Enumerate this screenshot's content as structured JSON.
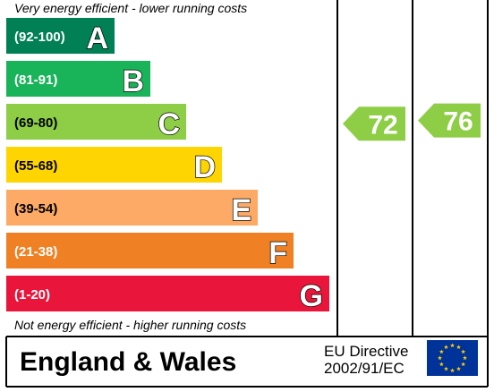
{
  "chart_data": {
    "type": "bar",
    "top_note": "Very energy efficient - lower running costs",
    "bottom_note": "Not energy efficient - higher running costs",
    "bands": [
      {
        "range": "(92-100)",
        "letter": "A",
        "color": "#008054"
      },
      {
        "range": "(81-91)",
        "letter": "B",
        "color": "#19b459"
      },
      {
        "range": "(69-80)",
        "letter": "C",
        "color": "#8dce46"
      },
      {
        "range": "(55-68)",
        "letter": "D",
        "color": "#ffd500"
      },
      {
        "range": "(39-54)",
        "letter": "E",
        "color": "#fcaa65"
      },
      {
        "range": "(21-38)",
        "letter": "F",
        "color": "#ef8023"
      },
      {
        "range": "(1-20)",
        "letter": "G",
        "color": "#e9153b"
      }
    ],
    "ratings": [
      {
        "value": 72,
        "band": "C",
        "color": "#8dce46"
      },
      {
        "value": 76,
        "band": "C",
        "color": "#8dce46"
      }
    ]
  },
  "footer": {
    "region": "England & Wales",
    "directive_line1": "EU Directive",
    "directive_line2": "2002/91/EC",
    "flag_blue": "#003399",
    "flag_star": "#ffcc00"
  }
}
